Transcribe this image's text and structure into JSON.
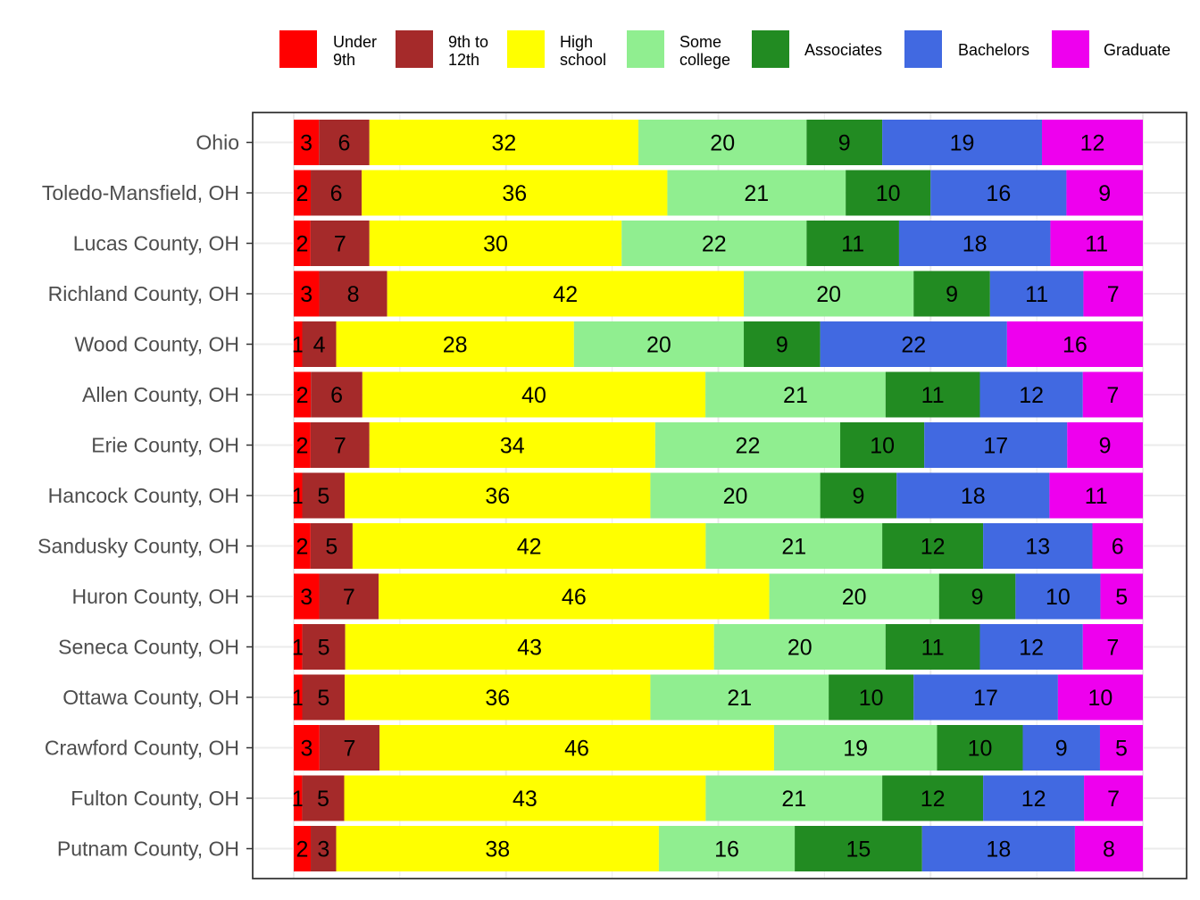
{
  "chart_data": {
    "type": "bar",
    "orientation": "horizontal",
    "stacked": true,
    "normalized_to_100": true,
    "legend_position": "top",
    "grid": true,
    "categories": [
      "Ohio",
      "Toledo-Mansfield, OH",
      "Lucas County, OH",
      "Richland County, OH",
      "Wood County, OH",
      "Allen County, OH",
      "Erie County, OH",
      "Hancock County, OH",
      "Sandusky County, OH",
      "Huron County, OH",
      "Seneca County, OH",
      "Ottawa County, OH",
      "Crawford County, OH",
      "Fulton County, OH",
      "Putnam County, OH"
    ],
    "series": [
      {
        "name": "Under 9th",
        "legend_lines": [
          "Under",
          "9th"
        ],
        "color": "#ff0000",
        "values": [
          3,
          2,
          2,
          3,
          1,
          2,
          2,
          1,
          2,
          3,
          1,
          1,
          3,
          1,
          2
        ]
      },
      {
        "name": "9th to 12th",
        "legend_lines": [
          "9th to",
          "12th"
        ],
        "color": "#a52a2a",
        "values": [
          6,
          6,
          7,
          8,
          4,
          6,
          7,
          5,
          5,
          7,
          5,
          5,
          7,
          5,
          3
        ]
      },
      {
        "name": "High school",
        "legend_lines": [
          "High",
          "school"
        ],
        "color": "#ffff00",
        "values": [
          32,
          36,
          30,
          42,
          28,
          40,
          34,
          36,
          42,
          46,
          43,
          36,
          46,
          43,
          38
        ]
      },
      {
        "name": "Some college",
        "legend_lines": [
          "Some",
          "college"
        ],
        "color": "#90ee90",
        "values": [
          20,
          21,
          22,
          20,
          20,
          21,
          22,
          20,
          21,
          20,
          20,
          21,
          19,
          21,
          16
        ]
      },
      {
        "name": "Associates",
        "legend_lines": [
          "Associates"
        ],
        "color": "#228b22",
        "values": [
          9,
          10,
          11,
          9,
          9,
          11,
          10,
          9,
          12,
          9,
          11,
          10,
          10,
          12,
          15
        ]
      },
      {
        "name": "Bachelors",
        "legend_lines": [
          "Bachelors"
        ],
        "color": "#4169e1",
        "values": [
          19,
          16,
          18,
          11,
          22,
          12,
          17,
          18,
          13,
          10,
          12,
          17,
          9,
          12,
          18
        ]
      },
      {
        "name": "Graduate",
        "legend_lines": [
          "Graduate"
        ],
        "color": "#ee00ee",
        "values": [
          12,
          9,
          11,
          7,
          16,
          7,
          9,
          11,
          6,
          5,
          7,
          10,
          5,
          7,
          8
        ]
      }
    ],
    "title": "",
    "xlabel": "",
    "ylabel": ""
  }
}
